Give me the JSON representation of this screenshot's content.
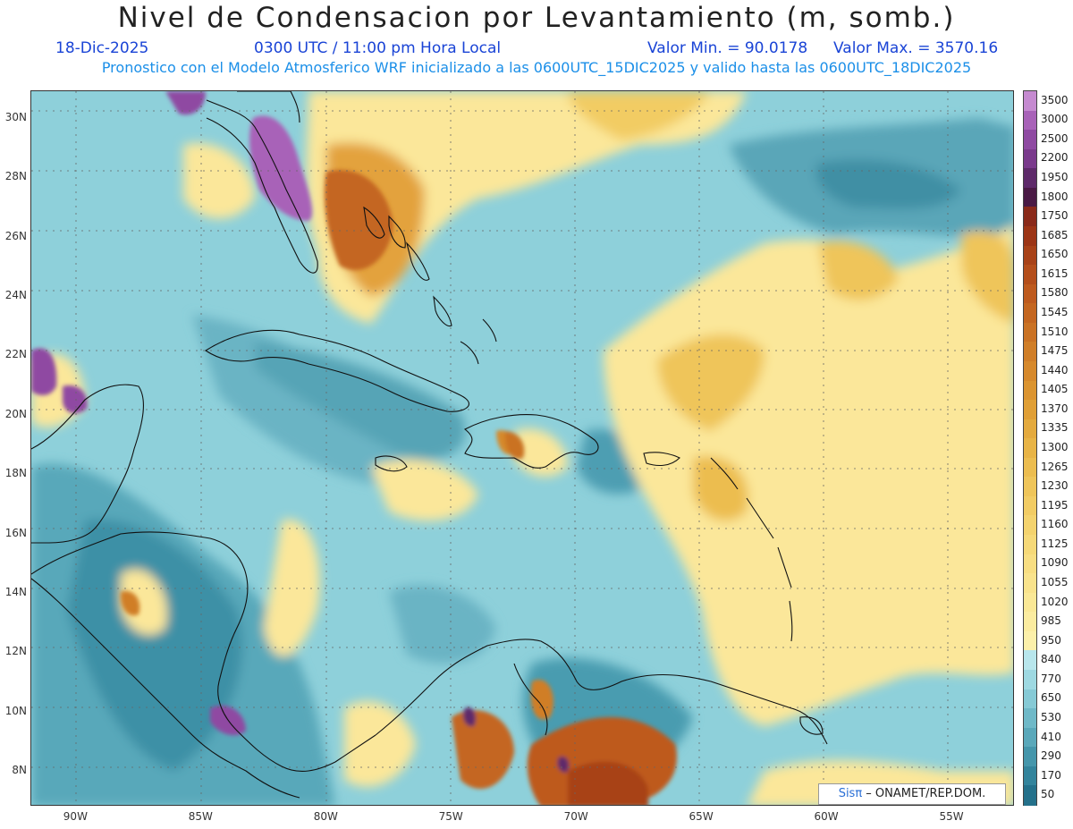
{
  "header": {
    "title": "Nivel de Condensacion por Levantamiento (m, somb.)",
    "date": "18-Dic-2025",
    "time": "0300 UTC / 11:00 pm Hora Local",
    "value_min": "Valor Min. = 90.0178",
    "value_max": "Valor Max. = 3570.16",
    "subtitle": "Pronostico con el Modelo Atmosferico WRF inicializado a las 0600UTC_15DIC2025 y valido hasta las  0600UTC_18DIC2025"
  },
  "axes": {
    "lat_labels": [
      "30N",
      "28N",
      "26N",
      "24N",
      "22N",
      "20N",
      "18N",
      "16N",
      "14N",
      "12N",
      "10N",
      "8N"
    ],
    "lat_values": [
      30,
      28,
      26,
      24,
      22,
      20,
      18,
      16,
      14,
      12,
      10,
      8
    ],
    "lon_labels": [
      "90W",
      "85W",
      "80W",
      "75W",
      "70W",
      "65W",
      "60W",
      "55W"
    ],
    "lon_values": [
      -90,
      -85,
      -80,
      -75,
      -70,
      -65,
      -60,
      -55
    ],
    "lon_range": [
      -91.8,
      -52.5
    ],
    "lat_range": [
      6.8,
      30.9
    ]
  },
  "colorbar": {
    "labels": [
      "3500",
      "3000",
      "2500",
      "2200",
      "1950",
      "1800",
      "1750",
      "1685",
      "1650",
      "1615",
      "1580",
      "1545",
      "1510",
      "1475",
      "1440",
      "1405",
      "1370",
      "1335",
      "1300",
      "1265",
      "1230",
      "1195",
      "1160",
      "1125",
      "1090",
      "1055",
      "1020",
      "985",
      "950",
      "840",
      "770",
      "650",
      "530",
      "410",
      "290",
      "170",
      "50"
    ],
    "colors": [
      "#c58ad0",
      "#a862b8",
      "#8f4aa2",
      "#7a3a8c",
      "#5e2a6a",
      "#4a1a45",
      "#8a2a1a",
      "#9c3516",
      "#a84218",
      "#b44e1b",
      "#be5a1e",
      "#c46620",
      "#ca7224",
      "#d07e28",
      "#d6892c",
      "#db9430",
      "#e09f36",
      "#e4aa3e",
      "#e8b446",
      "#ecbd50",
      "#efc55a",
      "#f2cc64",
      "#f4d36e",
      "#f6d978",
      "#f8de82",
      "#f9e38c",
      "#fae896",
      "#fbeca0",
      "#fcf0aa",
      "#b8e6ec",
      "#9ed9e2",
      "#86cad6",
      "#6fb9c8",
      "#5aa8ba",
      "#4596ab",
      "#33849c",
      "#24718b"
    ]
  },
  "credit": {
    "sis": "Sisπ",
    "rest": " – ONAMET/REP.DOM."
  }
}
